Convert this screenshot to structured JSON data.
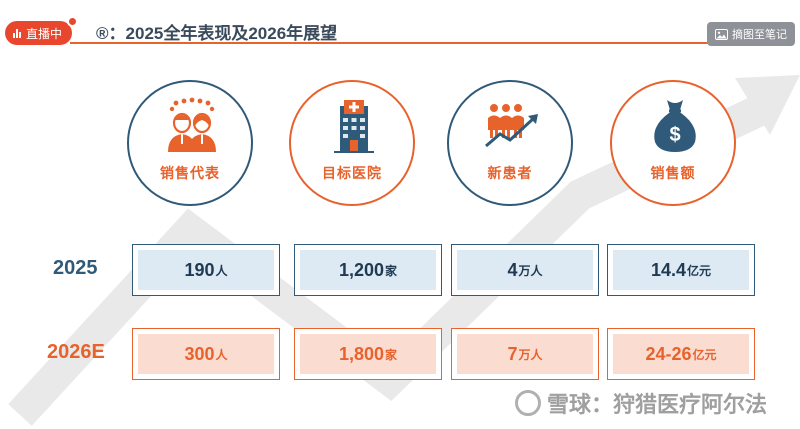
{
  "live": {
    "label": "直播中"
  },
  "header": {
    "title_prefix": "®：",
    "title": "2025全年表现及2026年展望"
  },
  "toolbar": {
    "note_label": "摘图至笔记",
    "note_icon": "image-icon"
  },
  "categories": [
    {
      "label": "销售代表",
      "icon": "people-icon",
      "border": "#2f5a79"
    },
    {
      "label": "目标医院",
      "icon": "hospital-icon",
      "border": "#e8622c"
    },
    {
      "label": "新患者",
      "icon": "growth-people-icon",
      "border": "#2f5a79"
    },
    {
      "label": "销售额",
      "icon": "money-bag-icon",
      "border": "#e8622c"
    }
  ],
  "rows": [
    {
      "label": "2025",
      "values": [
        {
          "num": "190",
          "unit": "人"
        },
        {
          "num": "1,200",
          "unit": "家"
        },
        {
          "num": "4",
          "unit": "万人"
        },
        {
          "num": "14.4",
          "unit": "亿元"
        }
      ]
    },
    {
      "label": "2026E",
      "values": [
        {
          "num": "300",
          "unit": "人"
        },
        {
          "num": "1,800",
          "unit": "家"
        },
        {
          "num": "7",
          "unit": "万人"
        },
        {
          "num": "24-26",
          "unit": "亿元"
        }
      ]
    }
  ],
  "watermark": {
    "text": "雪球：狩猎医疗阿尔法"
  },
  "colors": {
    "accent": "#e8622c",
    "primary": "#2f5a79",
    "live": "#e8472e"
  }
}
